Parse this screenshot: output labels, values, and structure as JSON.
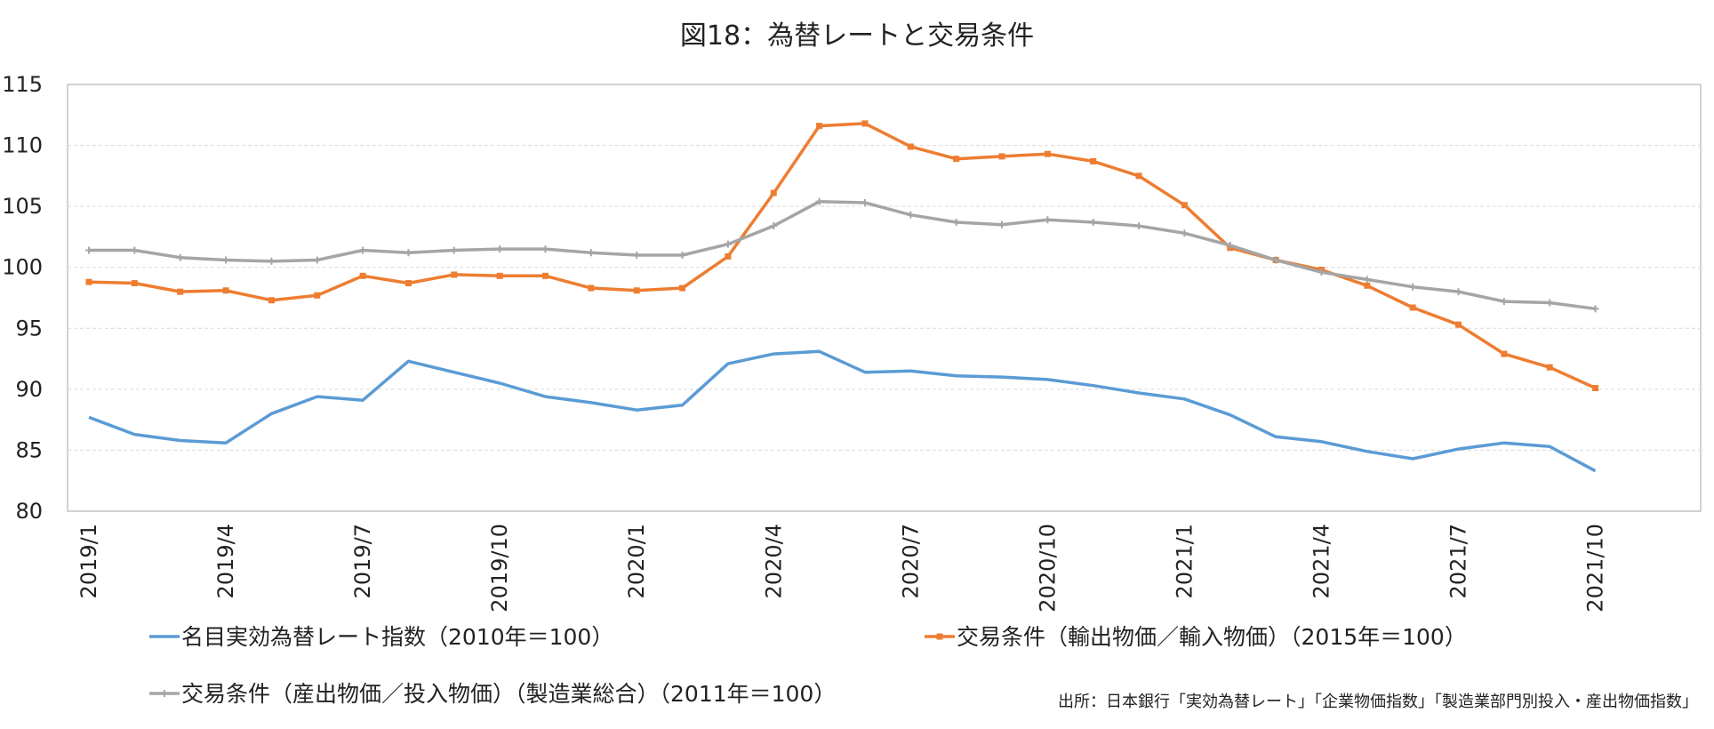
{
  "chart_data": {
    "type": "line",
    "title": "図18：為替レートと交易条件",
    "source": "出所：日本銀行「実効為替レート」「企業物価指数」「製造業部門別投入・産出物価指数」",
    "ylim": [
      80,
      115
    ],
    "yticks": [
      80,
      85,
      90,
      95,
      100,
      105,
      110,
      115
    ],
    "x": [
      "2019/1",
      "2019/2",
      "2019/3",
      "2019/4",
      "2019/5",
      "2019/6",
      "2019/7",
      "2019/8",
      "2019/9",
      "2019/10",
      "2019/11",
      "2019/12",
      "2020/1",
      "2020/2",
      "2020/3",
      "2020/4",
      "2020/5",
      "2020/6",
      "2020/7",
      "2020/8",
      "2020/9",
      "2020/10",
      "2020/11",
      "2020/12",
      "2021/1",
      "2021/2",
      "2021/3",
      "2021/4",
      "2021/5",
      "2021/6",
      "2021/7",
      "2021/8",
      "2021/9",
      "2021/10"
    ],
    "xtick_labels": [
      "2019/1",
      "2019/4",
      "2019/7",
      "2019/10",
      "2020/1",
      "2020/4",
      "2020/7",
      "2020/10",
      "2021/1",
      "2021/4",
      "2021/7",
      "2021/10"
    ],
    "grid": true,
    "legend_position": "bottom",
    "series": [
      {
        "name": "名目実効為替レート指数（2010年＝100）",
        "color": "#5b9bd5",
        "marker": "none",
        "values": [
          87.7,
          86.3,
          85.8,
          85.6,
          88.0,
          89.4,
          89.1,
          92.3,
          91.4,
          90.5,
          89.4,
          88.9,
          88.3,
          88.7,
          92.1,
          92.9,
          93.1,
          91.4,
          91.5,
          91.1,
          91.0,
          90.8,
          90.3,
          89.7,
          89.2,
          87.9,
          86.1,
          85.7,
          84.9,
          84.3,
          85.1,
          85.6,
          85.3,
          83.3
        ]
      },
      {
        "name": "交易条件（輸出物価／輸入物価）（2015年＝100）",
        "color": "#ed7d31",
        "marker": "square",
        "values": [
          98.8,
          98.7,
          98.0,
          98.1,
          97.3,
          97.7,
          99.3,
          98.7,
          99.4,
          99.3,
          99.3,
          98.3,
          98.1,
          98.3,
          100.9,
          106.1,
          111.6,
          111.8,
          109.9,
          108.9,
          109.1,
          109.3,
          108.7,
          107.5,
          105.1,
          101.6,
          100.6,
          99.8,
          98.5,
          96.7,
          95.3,
          92.9,
          91.8,
          90.1
        ]
      },
      {
        "name": "交易条件（産出物価／投入物価）（製造業総合）（2011年＝100）",
        "color": "#a5a5a5",
        "marker": "cross",
        "values": [
          101.4,
          101.4,
          100.8,
          100.6,
          100.5,
          100.6,
          101.4,
          101.2,
          101.4,
          101.5,
          101.5,
          101.2,
          101.0,
          101.0,
          101.9,
          103.4,
          105.4,
          105.3,
          104.3,
          103.7,
          103.5,
          103.9,
          103.7,
          103.4,
          102.8,
          101.8,
          100.6,
          99.6,
          99.0,
          98.4,
          98.0,
          97.2,
          97.1,
          96.6
        ]
      }
    ]
  }
}
